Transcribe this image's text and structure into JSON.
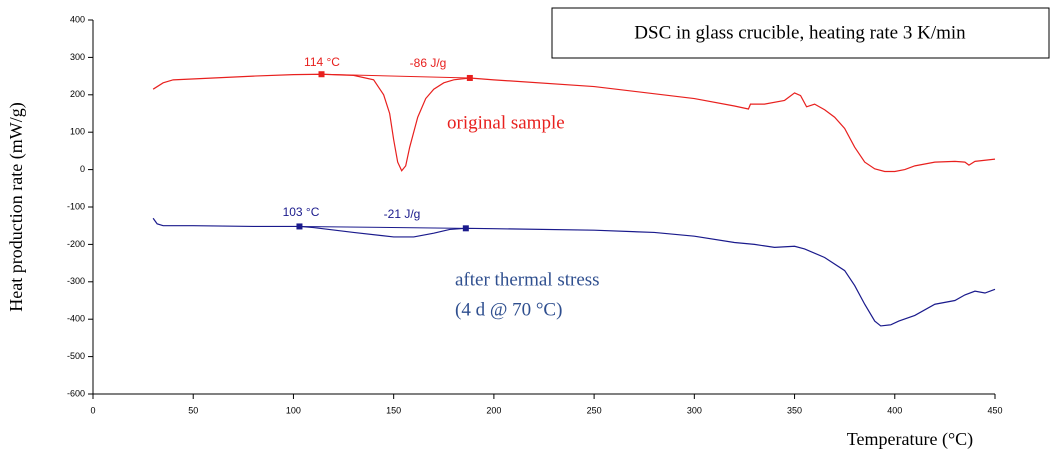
{
  "chart_data": {
    "type": "line",
    "title": "DSC in glass crucible, heating rate 3 K/min",
    "xlabel": "Temperature (°C)",
    "ylabel": "Heat production rate (mW/g)",
    "xlim": [
      0,
      450
    ],
    "ylim": [
      -600,
      400
    ],
    "xticks": [
      0,
      50,
      100,
      150,
      200,
      250,
      300,
      350,
      400,
      450
    ],
    "yticks": [
      -600,
      -500,
      -400,
      -300,
      -200,
      -100,
      0,
      100,
      200,
      300,
      400
    ],
    "grid": false,
    "series": [
      {
        "name": "original sample",
        "color": "#e8201e",
        "x": [
          30,
          35,
          40,
          60,
          80,
          100,
          114,
          130,
          140,
          145,
          148,
          150,
          152,
          154,
          156,
          158,
          162,
          166,
          170,
          175,
          180,
          188,
          200,
          250,
          300,
          320,
          327,
          328,
          335,
          345,
          350,
          353,
          356,
          360,
          365,
          370,
          375,
          380,
          385,
          390,
          395,
          400,
          405,
          410,
          420,
          430,
          435,
          437,
          440,
          445,
          450
        ],
        "values": [
          215,
          232,
          240,
          245,
          250,
          254,
          255,
          252,
          240,
          200,
          150,
          80,
          20,
          -3,
          10,
          60,
          140,
          190,
          215,
          232,
          240,
          245,
          240,
          222,
          190,
          170,
          162,
          175,
          175,
          185,
          205,
          198,
          168,
          175,
          160,
          140,
          110,
          60,
          20,
          2,
          -5,
          -5,
          0,
          10,
          20,
          22,
          20,
          12,
          22,
          25,
          28
        ]
      },
      {
        "name": "after thermal stress",
        "color": "#1a1a8c",
        "x": [
          30,
          32,
          35,
          50,
          80,
          103,
          110,
          130,
          150,
          160,
          170,
          178,
          186,
          200,
          250,
          280,
          300,
          320,
          330,
          340,
          350,
          355,
          365,
          375,
          380,
          385,
          390,
          393,
          398,
          402,
          410,
          420,
          430,
          435,
          440,
          445,
          450
        ],
        "values": [
          -130,
          -145,
          -150,
          -150,
          -152,
          -152,
          -155,
          -168,
          -180,
          -180,
          -170,
          -160,
          -157,
          -158,
          -162,
          -168,
          -178,
          -195,
          -200,
          -208,
          -205,
          -212,
          -235,
          -270,
          -310,
          -360,
          -405,
          -418,
          -415,
          -405,
          -390,
          -360,
          -350,
          -335,
          -325,
          -330,
          -320
        ]
      }
    ],
    "events": [
      {
        "x": [
          114,
          188
        ],
        "values": [
          255,
          245
        ],
        "onset": 114,
        "onset_label": "114 °C",
        "enthalpy": -86,
        "enthalpy_label": "-86 J/g",
        "color": "#e8201e"
      },
      {
        "x": [
          103,
          186
        ],
        "values": [
          -152,
          -157
        ],
        "onset": 103,
        "onset_label": "103 °C",
        "enthalpy": -21,
        "enthalpy_label": "-21 J/g",
        "color": "#1a1a8c"
      }
    ],
    "annotations": [
      "(4 d @ 70 °C)"
    ]
  }
}
